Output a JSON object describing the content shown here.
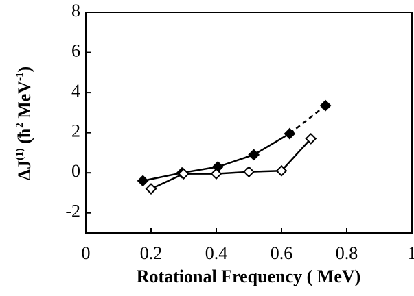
{
  "chart_data": {
    "type": "line",
    "x_label": "Rotational Frequency ( MeV)",
    "y_label": {
      "parts": [
        "ΔJ",
        "(1)",
        " (ħ",
        "2",
        " MeV",
        "-1",
        ")"
      ]
    },
    "xlim": [
      0,
      1
    ],
    "xticks": [
      0,
      0.2,
      0.4,
      0.6,
      0.8,
      1
    ],
    "ylim": [
      -3,
      8
    ],
    "yticks": [
      -2,
      0,
      2,
      4,
      6,
      8
    ],
    "series": [
      {
        "color": "#000000",
        "marker_filled": true,
        "dashed_from": 4,
        "x": [
          0.175,
          0.295,
          0.405,
          0.515,
          0.625,
          0.735
        ],
        "values": [
          -0.4,
          0,
          0.3,
          0.9,
          1.95,
          3.35
        ]
      },
      {
        "color": "#000000",
        "marker_filled": false,
        "x": [
          0.2,
          0.3,
          0.4,
          0.5,
          0.6,
          0.69
        ],
        "values": [
          -0.8,
          -0.05,
          -0.05,
          0.05,
          0.1,
          1.7
        ]
      }
    ]
  }
}
